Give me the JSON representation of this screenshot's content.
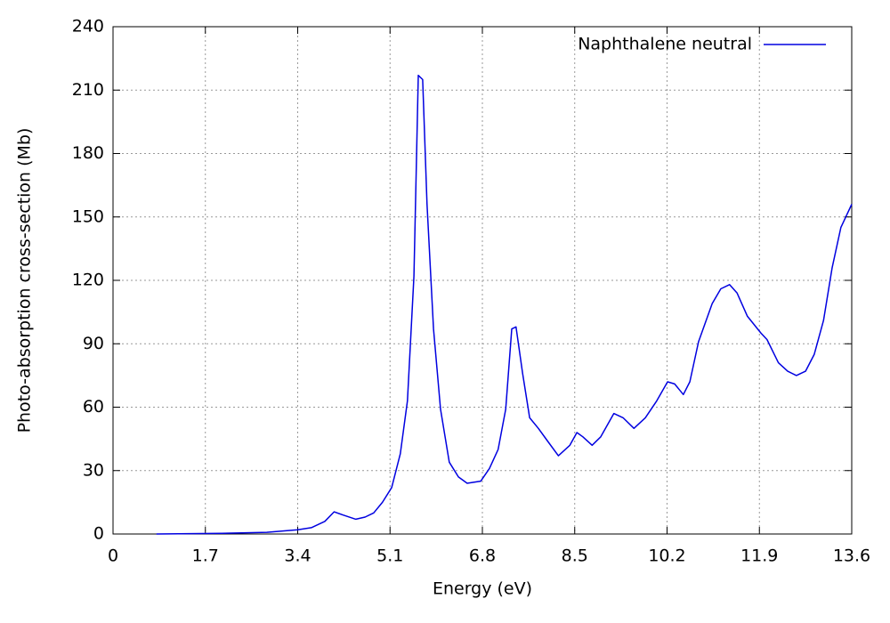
{
  "chart_data": {
    "type": "line",
    "xlabel": "Energy (eV)",
    "ylabel": "Photo-absorption cross-section (Mb)",
    "xlim": [
      0,
      13.6
    ],
    "xticks": [
      0,
      1.7,
      3.4,
      5.1,
      6.8,
      8.5,
      10.2,
      11.9,
      13.6
    ],
    "ylim": [
      0,
      240
    ],
    "yticks": [
      0,
      30,
      60,
      90,
      120,
      150,
      180,
      210,
      240
    ],
    "grid": true,
    "legend": "upper right",
    "x": [
      0.8,
      2.0,
      2.83,
      3.4,
      3.65,
      3.9,
      4.07,
      4.23,
      4.47,
      4.64,
      4.8,
      4.96,
      5.13,
      5.29,
      5.42,
      5.54,
      5.62,
      5.7,
      5.78,
      5.9,
      6.03,
      6.19,
      6.36,
      6.52,
      6.77,
      6.93,
      7.09,
      7.23,
      7.34,
      7.42,
      7.54,
      7.67,
      7.83,
      8.0,
      8.2,
      8.41,
      8.54,
      8.65,
      8.82,
      8.98,
      9.22,
      9.39,
      9.59,
      9.8,
      10.01,
      10.21,
      10.34,
      10.5,
      10.62,
      10.78,
      11.03,
      11.19,
      11.35,
      11.49,
      11.68,
      11.93,
      12.04,
      12.25,
      12.42,
      12.58,
      12.75,
      12.91,
      13.08,
      13.24,
      13.4,
      13.6
    ],
    "series": [
      {
        "name": "Naphthalene neutral",
        "color": "#0000e0",
        "values": [
          0,
          0.3,
          0.8,
          2,
          3,
          6,
          10.5,
          9,
          7,
          8,
          10,
          15,
          22,
          38,
          63,
          122,
          217,
          215,
          156,
          97,
          59,
          34,
          27,
          24,
          25,
          31,
          40,
          59,
          97,
          98,
          76,
          55,
          50,
          44,
          37,
          42,
          48,
          46,
          42,
          46,
          57,
          55,
          50,
          55,
          63,
          72,
          71,
          66,
          72,
          91,
          109,
          116,
          118,
          114,
          103,
          95,
          92,
          81,
          77,
          75,
          77,
          85,
          101,
          126,
          145,
          156
        ]
      }
    ]
  }
}
